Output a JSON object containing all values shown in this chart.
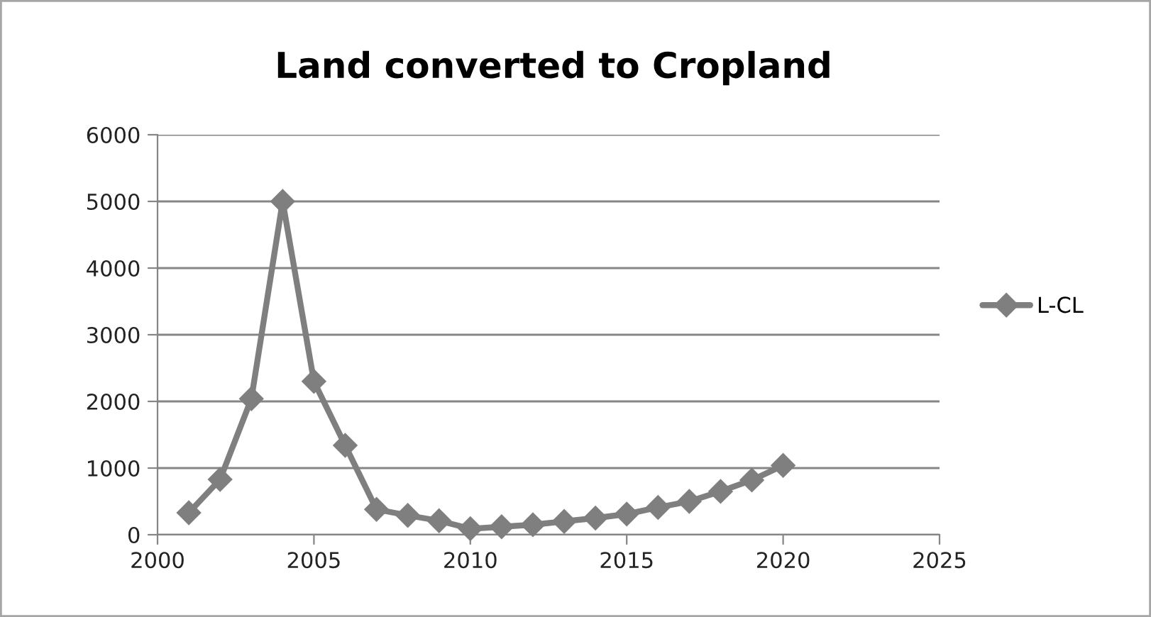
{
  "chart_data": {
    "type": "line",
    "title": "Land converted to Cropland",
    "x": [
      2001,
      2002,
      2003,
      2004,
      2005,
      2006,
      2007,
      2008,
      2009,
      2010,
      2011,
      2012,
      2013,
      2014,
      2015,
      2016,
      2017,
      2018,
      2019,
      2020
    ],
    "series": [
      {
        "name": "L-CL",
        "color": "#7f7f7f",
        "values": [
          330,
          830,
          2040,
          5000,
          2300,
          1340,
          380,
          290,
          210,
          90,
          120,
          150,
          200,
          250,
          310,
          410,
          500,
          650,
          820,
          1040
        ]
      }
    ],
    "xlim": [
      2000,
      2025
    ],
    "xticks": [
      2000,
      2005,
      2010,
      2015,
      2020,
      2025
    ],
    "ylim": [
      0,
      6000
    ],
    "yticks": [
      0,
      1000,
      2000,
      3000,
      4000,
      5000,
      6000
    ],
    "grid": "y",
    "legend": "right",
    "marker": "diamond",
    "line_style": "solid"
  }
}
